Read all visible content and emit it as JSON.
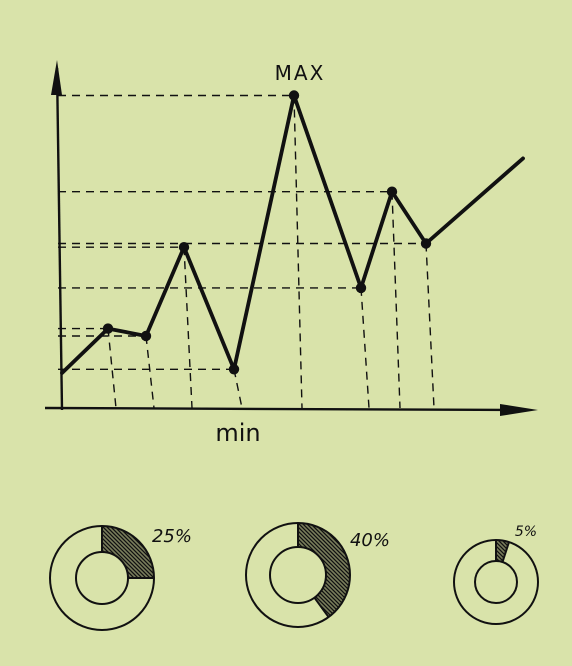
{
  "palette": {
    "background": "#d9e3aa",
    "ink": "#111111"
  },
  "chart_data": [
    {
      "type": "line",
      "title": "",
      "annotations": {
        "max_label": "MAX",
        "min_label": "min"
      },
      "xlabel": "",
      "ylabel": "",
      "grid": "dashed guide lines from each point to both axes",
      "x": [
        0,
        1,
        2,
        3,
        4,
        5,
        6,
        7,
        8,
        9
      ],
      "y": [
        10,
        22,
        20,
        44,
        11,
        85,
        33,
        59,
        45,
        68
      ],
      "ylim": [
        0,
        100
      ]
    },
    {
      "type": "pie",
      "style": "donut",
      "slices": [
        {
          "label": "25%",
          "value": 25
        },
        {
          "label": "40%",
          "value": 40
        },
        {
          "label": "5%",
          "value": 5
        }
      ]
    }
  ]
}
